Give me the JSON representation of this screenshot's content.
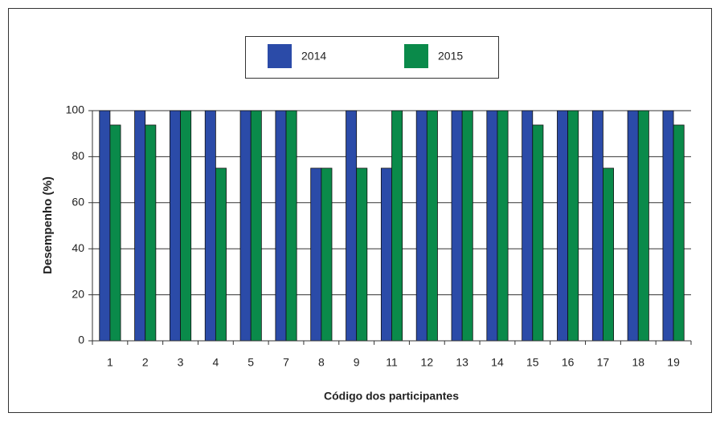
{
  "chart_data": {
    "type": "bar",
    "xlabel": "Código dos participantes",
    "ylabel": "Desempenho (%)",
    "categories": [
      "1",
      "2",
      "3",
      "4",
      "5",
      "7",
      "8",
      "9",
      "11",
      "12",
      "13",
      "14",
      "15",
      "16",
      "17",
      "18",
      "19"
    ],
    "series": [
      {
        "name": "2014",
        "color": "#2b4ba8",
        "values": [
          100,
          100,
          100,
          100,
          100,
          100,
          75,
          100,
          75,
          100,
          100,
          100,
          100,
          100,
          100,
          100,
          100
        ]
      },
      {
        "name": "2015",
        "color": "#0a8a4a",
        "values": [
          93.75,
          93.75,
          100,
          75,
          100,
          100,
          75,
          75,
          100,
          100,
          100,
          100,
          93.75,
          100,
          75,
          100,
          93.75
        ]
      }
    ],
    "ylim": [
      0,
      100
    ],
    "yticks": [
      0,
      20,
      40,
      60,
      80,
      100
    ],
    "grid": true,
    "legend": "top"
  }
}
